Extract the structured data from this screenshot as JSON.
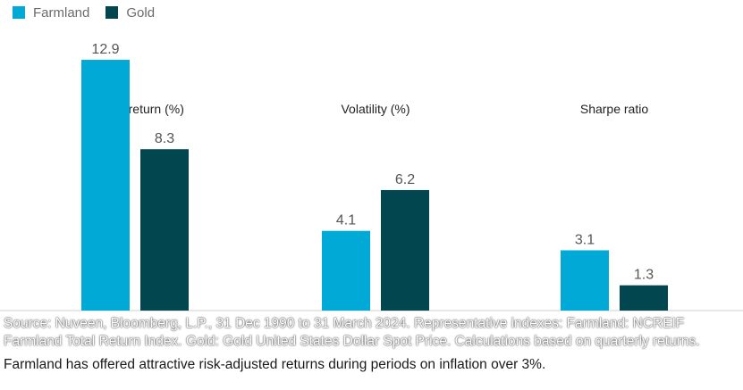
{
  "chart_data": {
    "type": "bar",
    "categories": [
      "Annual return (%)",
      "Volatility (%)",
      "Sharpe ratio"
    ],
    "series": [
      {
        "name": "Farmland",
        "values": [
          12.9,
          4.1,
          3.1
        ],
        "color": "#00a9d6"
      },
      {
        "name": "Gold",
        "values": [
          8.3,
          6.2,
          1.3
        ],
        "color": "#02474f"
      }
    ],
    "value_labels": {
      "Farmland": [
        "12.9",
        "4.1",
        "3.1"
      ],
      "Gold": [
        "8.3",
        "6.2",
        "1.3"
      ]
    },
    "ylim": [
      0,
      14.6
    ],
    "grid": false,
    "legend_position": "top-left"
  },
  "caption": {
    "source": "Source: Nuveen, Bloomberg, L.P., 31 Dec 1990 to 31 March 2024. Representative indexes: Farmland: NCREIF Farmland Total Return Index. Gold: Gold United States Dollar Spot Price. Calculations based on quarterly returns.",
    "summary": "Farmland has offered attractive risk-adjusted returns during periods on inflation over 3%."
  }
}
